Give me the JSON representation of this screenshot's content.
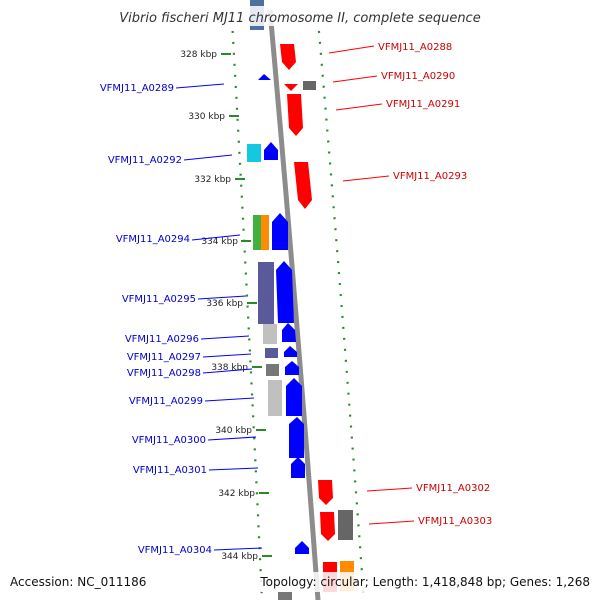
{
  "title": "Vibrio fischeri MJ11 chromosome II, complete sequence",
  "footer": {
    "accession": "Accession: NC_011186",
    "summary": "Topology: circular; Length: 1,418,848 bp; Genes: 1,268"
  },
  "colors": {
    "forward": "#ff0000",
    "reverse": "#0000ff",
    "backbone": "#8c8c8c",
    "tick": "#2a8a2a"
  },
  "tick_labels": [
    "328 kbp",
    "330 kbp",
    "332 kbp",
    "334 kbp",
    "336 kbp",
    "338 kbp",
    "340 kbp",
    "342 kbp",
    "344 kbp"
  ],
  "genes_forward": [
    "VFMJ11_A0288",
    "VFMJ11_A0290",
    "VFMJ11_A0291",
    "VFMJ11_A0293",
    "VFMJ11_A0302",
    "VFMJ11_A0303"
  ],
  "genes_reverse": [
    "VFMJ11_A0289",
    "VFMJ11_A0292",
    "VFMJ11_A0294",
    "VFMJ11_A0295",
    "VFMJ11_A0296",
    "VFMJ11_A0297",
    "VFMJ11_A0298",
    "VFMJ11_A0299",
    "VFMJ11_A0300",
    "VFMJ11_A0301",
    "VFMJ11_A0304"
  ]
}
